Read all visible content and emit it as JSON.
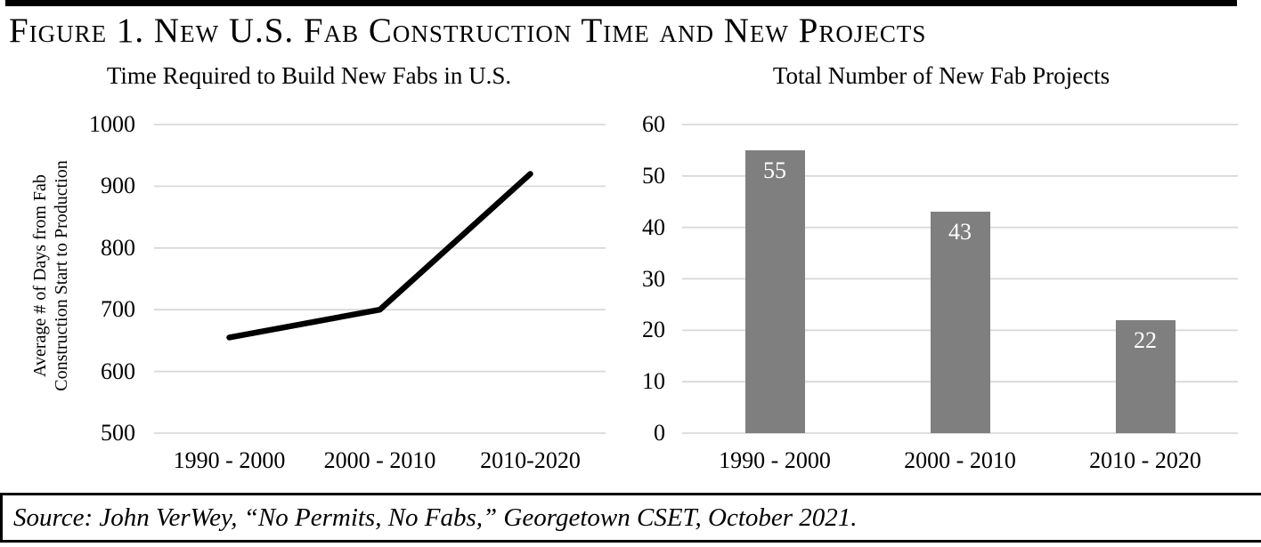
{
  "figure": {
    "title": "Figure 1. New U.S. Fab Construction Time and New Projects",
    "source": "Source: John VerWey, “No Permits, No Fabs,” Georgetown CSET, October 2021."
  },
  "colors": {
    "bar": "#7f7f7f",
    "line": "#000000",
    "gridline": "#d9d9d9",
    "bar_label_text": "#ffffff",
    "top_bar": "#000000",
    "text": "#000000"
  },
  "chart_data": [
    {
      "type": "line",
      "title": "Time Required to Build New Fabs in U.S.",
      "categories": [
        "1990 - 2000",
        "2000 - 2010",
        "2010-2020"
      ],
      "values": [
        655,
        700,
        920
      ],
      "ylabel": "Average # of Days from Fab Construction Start to Production",
      "ylabel_lines": [
        "Average # of Days from Fab",
        "Construction Start to Production"
      ],
      "yticks": [
        500,
        600,
        700,
        800,
        900,
        1000
      ],
      "ylim": [
        500,
        1000
      ],
      "xlabel": "",
      "grid": true,
      "legend": false
    },
    {
      "type": "bar",
      "title": "Total Number of New Fab Projects",
      "categories": [
        "1990 - 2000",
        "2000 - 2010",
        "2010 - 2020"
      ],
      "values": [
        55,
        43,
        22
      ],
      "data_labels": [
        "55",
        "43",
        "22"
      ],
      "yticks": [
        0,
        10,
        20,
        30,
        40,
        50,
        60
      ],
      "ylim": [
        0,
        60
      ],
      "xlabel": "",
      "ylabel": "",
      "grid": true,
      "legend": false
    }
  ]
}
